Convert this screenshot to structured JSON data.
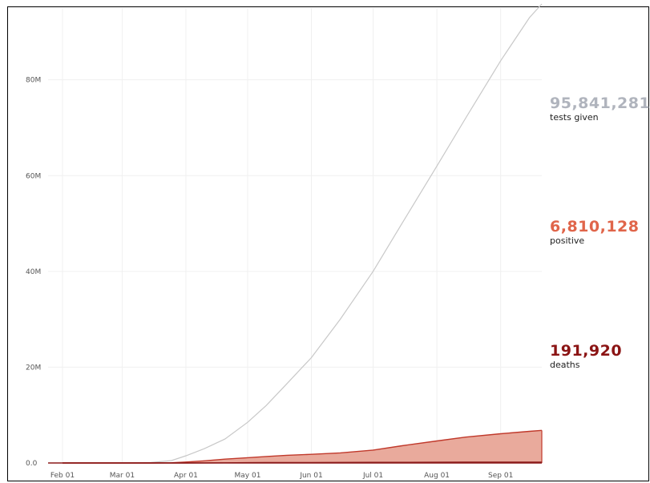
{
  "chart_data": {
    "type": "area",
    "x": [
      "2020-02-01",
      "2020-02-15",
      "2020-03-01",
      "2020-03-15",
      "2020-03-25",
      "2020-04-01",
      "2020-04-10",
      "2020-04-20",
      "2020-05-01",
      "2020-05-10",
      "2020-05-20",
      "2020-06-01",
      "2020-06-15",
      "2020-07-01",
      "2020-07-15",
      "2020-08-01",
      "2020-08-15",
      "2020-09-01",
      "2020-09-15",
      "2020-09-21"
    ],
    "series": [
      {
        "name": "tests given",
        "color": "#c8c8c8",
        "fill": false,
        "values": [
          0,
          0,
          0,
          0.1,
          0.5,
          1.5,
          3,
          5,
          8.5,
          12,
          16.5,
          22,
          30,
          40,
          50,
          62,
          72,
          84,
          93,
          95.84
        ]
      },
      {
        "name": "positive",
        "color": "#c0392b",
        "fill": "#e9aa9c",
        "values": [
          0,
          0,
          0,
          0,
          0.05,
          0.2,
          0.45,
          0.8,
          1.1,
          1.35,
          1.6,
          1.8,
          2.1,
          2.7,
          3.6,
          4.6,
          5.4,
          6.1,
          6.6,
          6.81
        ]
      },
      {
        "name": "deaths",
        "color": "#8b1a1a",
        "fill": false,
        "values": [
          0,
          0,
          0,
          0,
          0,
          0.005,
          0.02,
          0.04,
          0.065,
          0.08,
          0.09,
          0.105,
          0.115,
          0.13,
          0.14,
          0.155,
          0.17,
          0.183,
          0.189,
          0.192
        ]
      }
    ],
    "ylim": [
      0,
      95
    ],
    "y_ticks": [
      {
        "value": 0,
        "label": "0.0"
      },
      {
        "value": 20,
        "label": "20M"
      },
      {
        "value": 40,
        "label": "40M"
      },
      {
        "value": 60,
        "label": "60M"
      },
      {
        "value": 80,
        "label": "80M"
      }
    ],
    "x_ticks": [
      {
        "date": "2020-02-01",
        "label": "Feb 01"
      },
      {
        "date": "2020-03-01",
        "label": "Mar 01"
      },
      {
        "date": "2020-04-01",
        "label": "Apr 01"
      },
      {
        "date": "2020-05-01",
        "label": "May 01"
      },
      {
        "date": "2020-06-01",
        "label": "Jun 01"
      },
      {
        "date": "2020-07-01",
        "label": "Jul 01"
      },
      {
        "date": "2020-08-01",
        "label": "Aug 01"
      },
      {
        "date": "2020-09-01",
        "label": "Sep 01"
      }
    ],
    "xlim": [
      "2020-01-25",
      "2020-09-21"
    ],
    "grid": true
  },
  "stats": {
    "tests": {
      "value": "95,841,281",
      "label": "tests given",
      "color": "#b0b4bd"
    },
    "positive": {
      "value": "6,810,128",
      "label": "positive",
      "color": "#e0654a"
    },
    "deaths": {
      "value": "191,920",
      "label": "deaths",
      "color": "#8b1414"
    }
  }
}
